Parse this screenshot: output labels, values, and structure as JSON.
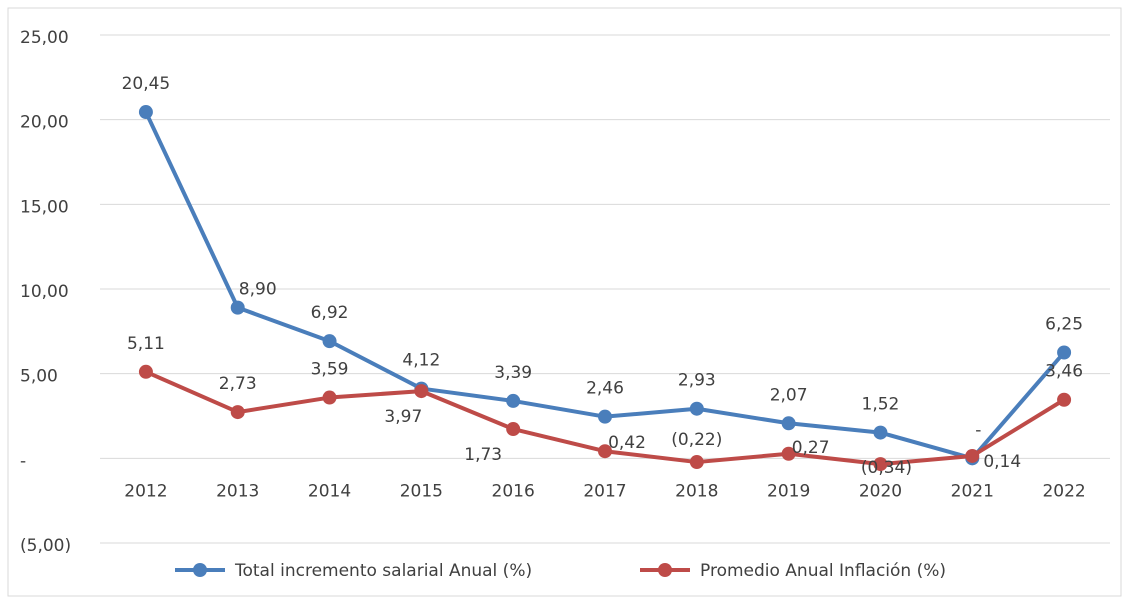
{
  "chart_data": {
    "type": "line",
    "categories": [
      "2012",
      "2013",
      "2014",
      "2015",
      "2016",
      "2017",
      "2018",
      "2019",
      "2020",
      "2021",
      "2022"
    ],
    "series": [
      {
        "name": "Total incremento salarial Anual (%)",
        "color": "#4a7ebb",
        "values": [
          20.45,
          8.9,
          6.92,
          4.12,
          3.39,
          2.46,
          2.93,
          2.07,
          1.52,
          0,
          6.25
        ],
        "value_labels": [
          "20,45",
          "8,90",
          "6,92",
          "4,12",
          "3,39",
          "2,46",
          "2,93",
          "2,07",
          "1,52",
          "-",
          "6,25"
        ]
      },
      {
        "name": "Promedio Anual Inflación (%)",
        "color": "#be4b48",
        "values": [
          5.11,
          2.73,
          3.59,
          3.97,
          1.73,
          0.42,
          -0.22,
          0.27,
          -0.34,
          0.14,
          3.46
        ],
        "value_labels": [
          "5,11",
          "2,73",
          "3,59",
          "3,97",
          "1,73",
          "0,42",
          "(0,22)",
          "0,27",
          "(0,34)",
          "0,14",
          "3,46"
        ]
      }
    ],
    "ylim": [
      -5,
      25
    ],
    "yticks": [
      {
        "value": -5,
        "label": "(5,00)"
      },
      {
        "value": 0,
        "label": "-"
      },
      {
        "value": 5,
        "label": "5,00"
      },
      {
        "value": 10,
        "label": "10,00"
      },
      {
        "value": 15,
        "label": "15,00"
      },
      {
        "value": 20,
        "label": "20,00"
      },
      {
        "value": 25,
        "label": "25,00"
      }
    ],
    "grid": true,
    "legend": "bottom"
  }
}
